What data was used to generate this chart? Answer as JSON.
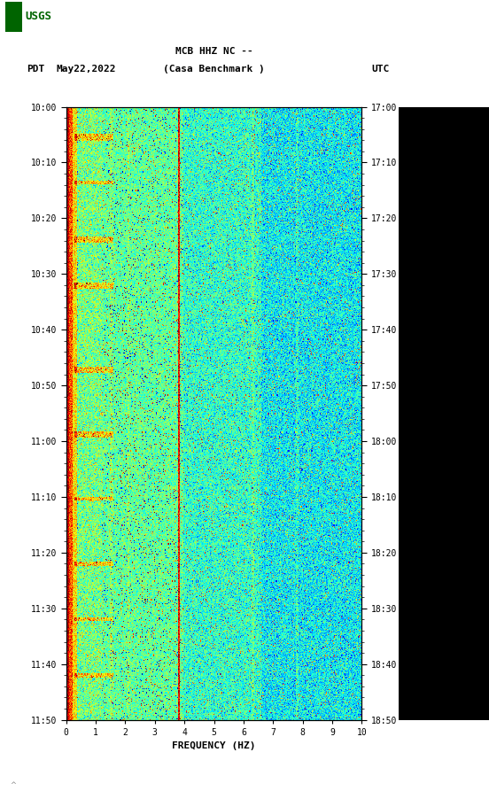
{
  "title_line1": "MCB HHZ NC --",
  "title_line2": "(Casa Benchmark )",
  "label_left": "PDT",
  "label_date": "May22,2022",
  "label_right": "UTC",
  "xlabel": "FREQUENCY (HZ)",
  "freq_min": 0,
  "freq_max": 10,
  "time_ticks_pdt": [
    "10:00",
    "10:10",
    "10:20",
    "10:30",
    "10:40",
    "10:50",
    "11:00",
    "11:10",
    "11:20",
    "11:30",
    "11:40",
    "11:50"
  ],
  "time_ticks_utc": [
    "17:00",
    "17:10",
    "17:20",
    "17:30",
    "17:40",
    "17:50",
    "18:00",
    "18:10",
    "18:20",
    "18:30",
    "18:40",
    "18:50"
  ],
  "freq_ticks": [
    0,
    1,
    2,
    3,
    4,
    5,
    6,
    7,
    8,
    9,
    10
  ],
  "usgs_logo_color": "#006400",
  "background_color": "#ffffff",
  "spectrogram_seed": 42,
  "n_time": 660,
  "n_freq": 380,
  "colormap": "jet",
  "fig_width": 5.52,
  "fig_height": 8.93,
  "right_panel_color": "#000000"
}
